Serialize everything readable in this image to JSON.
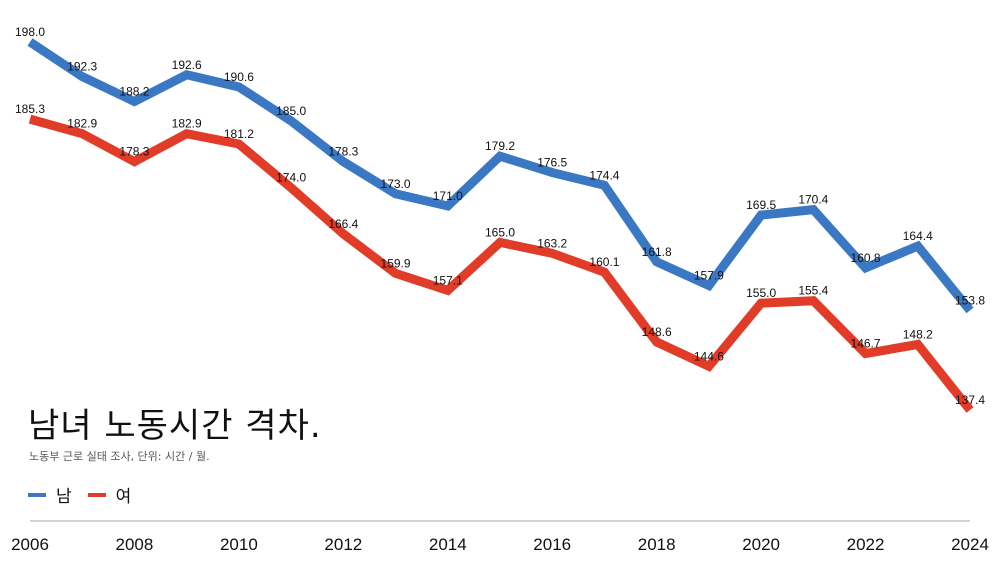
{
  "chart_data": {
    "type": "line",
    "title": "남녀 노동시간 격차.",
    "subtitle": "노동부 근로 실태 조사, 단위: 시간 / 월.",
    "xlabel": "",
    "ylabel": "",
    "x": [
      2006,
      2007,
      2008,
      2009,
      2010,
      2011,
      2012,
      2013,
      2014,
      2015,
      2016,
      2017,
      2018,
      2019,
      2020,
      2021,
      2022,
      2023,
      2024
    ],
    "x_ticks": [
      "2006",
      "2008",
      "2010",
      "2012",
      "2014",
      "2016",
      "2018",
      "2020",
      "2022",
      "2024"
    ],
    "ylim": [
      137.4,
      198.0
    ],
    "grid": false,
    "legend_position": "bottom-left",
    "series": [
      {
        "name": "남",
        "color": "#3b78c3",
        "values": [
          198.0,
          192.3,
          188.2,
          192.6,
          190.6,
          185.0,
          178.3,
          173.0,
          171.0,
          179.2,
          176.5,
          174.4,
          161.8,
          157.9,
          169.5,
          170.4,
          160.8,
          164.4,
          153.8
        ]
      },
      {
        "name": "여",
        "color": "#e03c28",
        "values": [
          185.3,
          182.9,
          178.3,
          182.9,
          181.2,
          174.0,
          166.4,
          159.9,
          157.1,
          165.0,
          163.2,
          160.1,
          148.6,
          144.6,
          155.0,
          155.4,
          146.7,
          148.2,
          137.4
        ]
      }
    ]
  }
}
